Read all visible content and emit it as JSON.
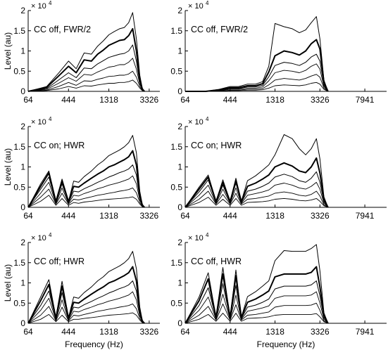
{
  "figure": {
    "ylabel": "Level (au)",
    "xlabel": "Frequency (Hz)",
    "scale_exponent": "× 10",
    "scale_power": "4"
  },
  "chart_data": [
    {
      "type": "line",
      "title": "CC off, FWR/2",
      "xticks": [
        "64",
        "444",
        "1318",
        "3326"
      ],
      "yticks": [
        "0",
        "0.5",
        "1",
        "1.5",
        "2"
      ],
      "ylim": [
        0,
        2
      ],
      "x": [
        64,
        200,
        320,
        444,
        560,
        700,
        850,
        1000,
        1150,
        1318,
        1500,
        1700,
        1900,
        2100,
        2300,
        2500,
        2700,
        2850,
        3000
      ],
      "series": [
        {
          "values": [
            0,
            0.02,
            0.06,
            0.12,
            0.08,
            0.14,
            0.13,
            0.16,
            0.18,
            0.2,
            0.2,
            0.22,
            0.22,
            0.24,
            0.28,
            0.2,
            0.08,
            0.02,
            0
          ]
        },
        {
          "values": [
            0,
            0.03,
            0.12,
            0.22,
            0.15,
            0.26,
            0.25,
            0.3,
            0.33,
            0.37,
            0.38,
            0.4,
            0.4,
            0.43,
            0.5,
            0.35,
            0.12,
            0.03,
            0
          ]
        },
        {
          "values": [
            0,
            0.05,
            0.2,
            0.34,
            0.25,
            0.42,
            0.4,
            0.48,
            0.54,
            0.6,
            0.62,
            0.66,
            0.66,
            0.72,
            0.82,
            0.55,
            0.18,
            0.04,
            0
          ]
        },
        {
          "values": [
            0,
            0.07,
            0.28,
            0.46,
            0.34,
            0.58,
            0.56,
            0.68,
            0.76,
            0.84,
            0.88,
            0.92,
            0.94,
            1.0,
            1.15,
            0.75,
            0.22,
            0.05,
            0
          ]
        },
        {
          "values": [
            0,
            0.1,
            0.38,
            0.62,
            0.46,
            0.78,
            0.75,
            0.92,
            1.02,
            1.14,
            1.2,
            1.26,
            1.28,
            1.38,
            1.55,
            1.0,
            0.3,
            0.06,
            0
          ]
        },
        {
          "values": [
            0,
            0.12,
            0.45,
            0.75,
            0.56,
            0.95,
            0.92,
            1.12,
            1.25,
            1.4,
            1.48,
            1.55,
            1.58,
            1.7,
            1.95,
            1.3,
            0.4,
            0.08,
            0
          ]
        }
      ]
    },
    {
      "type": "line",
      "title": "CC off, FWR/2",
      "xticks": [
        "64",
        "444",
        "1318",
        "3326",
        "7941"
      ],
      "yticks": [
        "0",
        "0.5",
        "1",
        "1.5",
        "2"
      ],
      "ylim": [
        0,
        2
      ],
      "x": [
        64,
        200,
        320,
        444,
        560,
        700,
        850,
        1000,
        1150,
        1318,
        1600,
        1900,
        2200,
        2500,
        2800,
        3100,
        3326,
        3600,
        3900
      ],
      "series": [
        {
          "values": [
            0,
            0,
            0.01,
            0.02,
            0.02,
            0.03,
            0.03,
            0.04,
            0.08,
            0.14,
            0.16,
            0.15,
            0.14,
            0.16,
            0.2,
            0.22,
            0.18,
            0.05,
            0
          ]
        },
        {
          "values": [
            0,
            0,
            0.01,
            0.03,
            0.03,
            0.05,
            0.05,
            0.07,
            0.16,
            0.28,
            0.32,
            0.3,
            0.28,
            0.32,
            0.38,
            0.42,
            0.35,
            0.08,
            0
          ]
        },
        {
          "values": [
            0,
            0,
            0.02,
            0.05,
            0.05,
            0.08,
            0.08,
            0.11,
            0.26,
            0.46,
            0.52,
            0.5,
            0.46,
            0.52,
            0.62,
            0.68,
            0.55,
            0.12,
            0
          ]
        },
        {
          "values": [
            0,
            0,
            0.03,
            0.07,
            0.07,
            0.11,
            0.11,
            0.15,
            0.36,
            0.64,
            0.72,
            0.69,
            0.64,
            0.72,
            0.85,
            0.92,
            0.75,
            0.16,
            0
          ]
        },
        {
          "values": [
            0,
            0,
            0.04,
            0.09,
            0.09,
            0.14,
            0.14,
            0.19,
            0.48,
            0.88,
            1.0,
            0.96,
            0.9,
            1.0,
            1.18,
            1.28,
            1.05,
            0.22,
            0
          ]
        },
        {
          "values": [
            0,
            0,
            0.05,
            0.12,
            0.12,
            0.18,
            0.18,
            0.24,
            0.62,
            1.68,
            1.6,
            1.55,
            1.45,
            1.52,
            1.7,
            1.85,
            1.3,
            0.28,
            0
          ]
        }
      ]
    },
    {
      "type": "line",
      "title": "CC on; HWR",
      "xticks": [
        "64",
        "444",
        "1318",
        "3326"
      ],
      "yticks": [
        "0",
        "0.5",
        "1",
        "1.5",
        "2"
      ],
      "ylim": [
        0,
        2
      ],
      "x": [
        64,
        150,
        220,
        290,
        360,
        444,
        520,
        600,
        700,
        850,
        1000,
        1150,
        1318,
        1500,
        1700,
        1900,
        2100,
        2300,
        2500,
        2700,
        2850,
        3000
      ],
      "series": [
        {
          "values": [
            0,
            0.15,
            0.3,
            0.05,
            0.22,
            0.05,
            0.12,
            0.1,
            0.13,
            0.15,
            0.17,
            0.19,
            0.2,
            0.21,
            0.22,
            0.23,
            0.24,
            0.26,
            0.2,
            0.08,
            0.02,
            0
          ]
        },
        {
          "values": [
            0,
            0.25,
            0.45,
            0.08,
            0.35,
            0.08,
            0.2,
            0.18,
            0.22,
            0.26,
            0.3,
            0.32,
            0.35,
            0.37,
            0.4,
            0.42,
            0.44,
            0.48,
            0.36,
            0.12,
            0.03,
            0
          ]
        },
        {
          "values": [
            0,
            0.35,
            0.62,
            0.1,
            0.48,
            0.1,
            0.3,
            0.28,
            0.34,
            0.4,
            0.46,
            0.5,
            0.55,
            0.58,
            0.62,
            0.66,
            0.7,
            0.78,
            0.58,
            0.18,
            0.04,
            0
          ]
        },
        {
          "values": [
            0,
            0.45,
            0.75,
            0.12,
            0.58,
            0.12,
            0.4,
            0.38,
            0.46,
            0.54,
            0.62,
            0.68,
            0.75,
            0.8,
            0.86,
            0.9,
            0.95,
            1.05,
            0.8,
            0.22,
            0.05,
            0
          ]
        },
        {
          "values": [
            0,
            0.52,
            0.85,
            0.14,
            0.66,
            0.14,
            0.52,
            0.5,
            0.6,
            0.72,
            0.82,
            0.9,
            1.0,
            1.05,
            1.12,
            1.18,
            1.25,
            1.4,
            1.05,
            0.3,
            0.06,
            0
          ]
        },
        {
          "values": [
            0,
            0.58,
            0.9,
            0.15,
            0.7,
            0.15,
            0.65,
            0.62,
            0.76,
            0.9,
            1.05,
            1.15,
            1.28,
            1.35,
            1.42,
            1.5,
            1.6,
            1.78,
            1.35,
            0.4,
            0.08,
            0
          ]
        }
      ]
    },
    {
      "type": "line",
      "title": "CC on; HWR",
      "xticks": [
        "64",
        "444",
        "1318",
        "3326",
        "7941"
      ],
      "yticks": [
        "0",
        "0.5",
        "1",
        "1.5",
        "2"
      ],
      "ylim": [
        0,
        2
      ],
      "x": [
        64,
        150,
        220,
        290,
        360,
        444,
        520,
        600,
        700,
        850,
        1000,
        1150,
        1318,
        1600,
        1900,
        2200,
        2500,
        2800,
        3100,
        3326,
        3600,
        3900
      ],
      "series": [
        {
          "values": [
            0,
            0.12,
            0.25,
            0.05,
            0.2,
            0.05,
            0.22,
            0.05,
            0.12,
            0.13,
            0.14,
            0.16,
            0.2,
            0.22,
            0.2,
            0.17,
            0.16,
            0.18,
            0.22,
            0.15,
            0.04,
            0
          ]
        },
        {
          "values": [
            0,
            0.2,
            0.4,
            0.08,
            0.32,
            0.08,
            0.35,
            0.08,
            0.2,
            0.22,
            0.25,
            0.28,
            0.35,
            0.38,
            0.35,
            0.3,
            0.28,
            0.32,
            0.4,
            0.28,
            0.06,
            0
          ]
        },
        {
          "values": [
            0,
            0.3,
            0.55,
            0.1,
            0.45,
            0.1,
            0.48,
            0.1,
            0.3,
            0.34,
            0.38,
            0.43,
            0.55,
            0.6,
            0.55,
            0.48,
            0.45,
            0.52,
            0.62,
            0.45,
            0.1,
            0
          ]
        },
        {
          "values": [
            0,
            0.38,
            0.68,
            0.12,
            0.55,
            0.12,
            0.6,
            0.12,
            0.4,
            0.45,
            0.52,
            0.6,
            0.75,
            0.82,
            0.76,
            0.66,
            0.62,
            0.72,
            0.88,
            0.62,
            0.14,
            0
          ]
        },
        {
          "values": [
            0,
            0.45,
            0.75,
            0.14,
            0.62,
            0.14,
            0.66,
            0.14,
            0.52,
            0.6,
            0.7,
            0.8,
            1.0,
            1.1,
            1.02,
            0.9,
            0.86,
            1.0,
            1.22,
            0.85,
            0.2,
            0
          ]
        },
        {
          "values": [
            0,
            0.5,
            0.8,
            0.15,
            0.68,
            0.15,
            0.72,
            0.15,
            0.66,
            0.78,
            0.92,
            1.05,
            1.3,
            1.8,
            1.7,
            1.45,
            1.3,
            1.45,
            1.7,
            1.2,
            0.26,
            0
          ]
        }
      ]
    },
    {
      "type": "line",
      "title": "CC off; HWR",
      "xticks": [
        "64",
        "444",
        "1318",
        "3326"
      ],
      "yticks": [
        "0",
        "0.5",
        "1",
        "1.5",
        "2"
      ],
      "ylim": [
        0,
        2
      ],
      "x": [
        64,
        150,
        220,
        290,
        360,
        444,
        520,
        600,
        700,
        850,
        1000,
        1150,
        1318,
        1500,
        1700,
        1900,
        2100,
        2300,
        2500,
        2700,
        2850,
        3000
      ],
      "series": [
        {
          "values": [
            0,
            0.1,
            0.22,
            0.04,
            0.2,
            0.04,
            0.1,
            0.1,
            0.12,
            0.14,
            0.16,
            0.18,
            0.2,
            0.21,
            0.22,
            0.23,
            0.24,
            0.26,
            0.2,
            0.08,
            0.02,
            0
          ]
        },
        {
          "values": [
            0,
            0.2,
            0.42,
            0.06,
            0.4,
            0.06,
            0.2,
            0.18,
            0.22,
            0.26,
            0.3,
            0.32,
            0.35,
            0.37,
            0.4,
            0.42,
            0.44,
            0.48,
            0.36,
            0.12,
            0.03,
            0
          ]
        },
        {
          "values": [
            0,
            0.32,
            0.62,
            0.08,
            0.58,
            0.08,
            0.3,
            0.28,
            0.34,
            0.4,
            0.46,
            0.5,
            0.55,
            0.58,
            0.62,
            0.66,
            0.7,
            0.78,
            0.58,
            0.18,
            0.04,
            0
          ]
        },
        {
          "values": [
            0,
            0.44,
            0.8,
            0.1,
            0.76,
            0.1,
            0.4,
            0.38,
            0.46,
            0.54,
            0.62,
            0.68,
            0.75,
            0.8,
            0.86,
            0.9,
            0.95,
            1.05,
            0.8,
            0.22,
            0.05,
            0
          ]
        },
        {
          "values": [
            0,
            0.56,
            0.96,
            0.12,
            0.92,
            0.12,
            0.52,
            0.5,
            0.6,
            0.72,
            0.82,
            0.9,
            1.0,
            1.05,
            1.12,
            1.18,
            1.25,
            1.4,
            1.05,
            0.3,
            0.06,
            0
          ]
        },
        {
          "values": [
            0,
            0.65,
            1.08,
            0.14,
            1.04,
            0.14,
            0.65,
            0.62,
            0.76,
            0.9,
            1.05,
            1.15,
            1.28,
            1.35,
            1.42,
            1.5,
            1.6,
            1.78,
            1.35,
            0.4,
            0.08,
            0
          ]
        }
      ]
    },
    {
      "type": "line",
      "title": "CC off, HWR",
      "xticks": [
        "64",
        "444",
        "1318",
        "3326",
        "7941"
      ],
      "yticks": [
        "0",
        "0.5",
        "1",
        "1.5",
        "2"
      ],
      "ylim": [
        0,
        2
      ],
      "x": [
        64,
        150,
        220,
        290,
        360,
        444,
        520,
        600,
        700,
        850,
        1000,
        1150,
        1318,
        1600,
        1900,
        2200,
        2500,
        2800,
        3100,
        3326,
        3600,
        3900
      ],
      "series": [
        {
          "values": [
            0,
            0.1,
            0.22,
            0.05,
            0.25,
            0.05,
            0.25,
            0.05,
            0.12,
            0.13,
            0.14,
            0.16,
            0.2,
            0.22,
            0.22,
            0.22,
            0.22,
            0.22,
            0.24,
            0.16,
            0.04,
            0
          ]
        },
        {
          "values": [
            0,
            0.2,
            0.42,
            0.08,
            0.48,
            0.08,
            0.46,
            0.08,
            0.2,
            0.22,
            0.25,
            0.28,
            0.4,
            0.44,
            0.44,
            0.44,
            0.44,
            0.45,
            0.5,
            0.32,
            0.06,
            0
          ]
        },
        {
          "values": [
            0,
            0.32,
            0.65,
            0.1,
            0.72,
            0.1,
            0.7,
            0.1,
            0.3,
            0.34,
            0.38,
            0.43,
            0.62,
            0.68,
            0.68,
            0.68,
            0.68,
            0.7,
            0.78,
            0.5,
            0.1,
            0
          ]
        },
        {
          "values": [
            0,
            0.44,
            0.88,
            0.12,
            0.98,
            0.12,
            0.94,
            0.12,
            0.4,
            0.45,
            0.52,
            0.6,
            0.85,
            0.92,
            0.92,
            0.92,
            0.92,
            0.95,
            1.05,
            0.68,
            0.14,
            0
          ]
        },
        {
          "values": [
            0,
            0.56,
            1.1,
            0.14,
            1.22,
            0.14,
            1.18,
            0.14,
            0.52,
            0.6,
            0.7,
            0.8,
            1.15,
            1.22,
            1.22,
            1.22,
            1.22,
            1.26,
            1.4,
            0.9,
            0.2,
            0
          ]
        },
        {
          "values": [
            0,
            0.65,
            1.25,
            0.15,
            1.38,
            0.15,
            1.32,
            0.15,
            0.66,
            0.78,
            0.92,
            1.05,
            1.55,
            1.8,
            1.78,
            1.78,
            1.78,
            1.85,
            1.95,
            1.3,
            0.26,
            0
          ]
        }
      ]
    }
  ]
}
